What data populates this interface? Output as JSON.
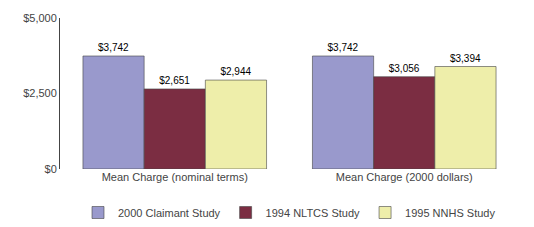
{
  "chart_data": {
    "type": "bar",
    "categories": [
      "Mean Charge (nominal terms)",
      "Mean Charge (2000 dollars)"
    ],
    "series": [
      {
        "name": "2000 Claimant Study",
        "color": "#9999CC",
        "values": [
          3742,
          3742
        ],
        "value_labels": [
          "$3,742",
          "$3,742"
        ]
      },
      {
        "name": "1994 NLTCS Study",
        "color": "#7B2D42",
        "values": [
          2651,
          3056
        ],
        "value_labels": [
          "$2,651",
          "$3,056"
        ]
      },
      {
        "name": "1995 NNHS Study",
        "color": "#EEEEAA",
        "values": [
          2944,
          3394
        ],
        "value_labels": [
          "$2,944",
          "$3,394"
        ]
      }
    ],
    "ylim": [
      0,
      5000
    ],
    "yticks": [
      {
        "value": 0,
        "label": "$0"
      },
      {
        "value": 2500,
        "label": "$2,500"
      },
      {
        "value": 5000,
        "label": "$5,000"
      }
    ],
    "data_labels": true,
    "grid": false,
    "legend": "bottom"
  }
}
